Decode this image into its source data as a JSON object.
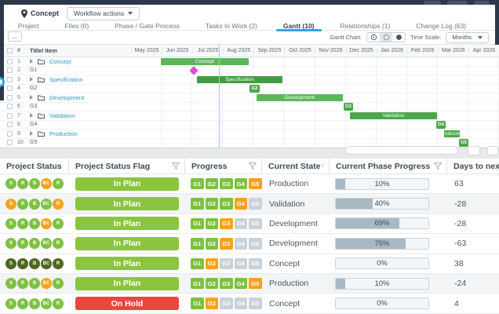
{
  "header": {
    "project_label": "Concept",
    "workflow_button": "Workflow actions"
  },
  "tabs": [
    {
      "label": "Project",
      "active": false
    },
    {
      "label": "Files (0)",
      "active": false
    },
    {
      "label": "Phase / Gate Process",
      "active": false
    },
    {
      "label": "Tasks In Work (2)",
      "active": false
    },
    {
      "label": "Gantt (10)",
      "active": true
    },
    {
      "label": "Relationships (1)",
      "active": false
    },
    {
      "label": "Change Log (63)",
      "active": false
    }
  ],
  "gantt_toolbar": {
    "more_button": "...",
    "chart_label": "Gantt Chart:",
    "view_icons": [
      "clock-circle-icon",
      "half-circle-icon",
      "filled-circle-icon"
    ],
    "selected_view_index": 1,
    "time_scale_label": "Time Scale:",
    "time_scale_value": "Months"
  },
  "gantt": {
    "col_headers": {
      "number": "#",
      "title": "Title/ Item"
    },
    "months": [
      "May 2025",
      "Jun 2025",
      "Jul 2025",
      "Aug 2025",
      "Sep 2025",
      "Oct 2025",
      "Nov 2025",
      "Dec 2025",
      "Jan 2026",
      "Feb 2026",
      "Mar 2026",
      "Apr 2026"
    ],
    "today_month": 2.87,
    "rows": [
      {
        "num": "1",
        "title": "Concept",
        "kind": "phase",
        "bar": {
          "type": "bar",
          "start": 0.97,
          "end": 3.84,
          "label": "Concept",
          "tone": "light"
        }
      },
      {
        "num": "2",
        "title": "G1",
        "kind": "gate",
        "bar": {
          "type": "diamond",
          "at": 2.05
        }
      },
      {
        "num": "3",
        "title": "Specification",
        "kind": "phase",
        "bar": {
          "type": "bar",
          "start": 2.15,
          "end": 4.94,
          "label": "Specification",
          "tone": "dark"
        }
      },
      {
        "num": "4",
        "title": "G2",
        "kind": "gate",
        "bar": {
          "type": "badge",
          "start": 3.86,
          "end": 4.2,
          "label": "G2"
        }
      },
      {
        "num": "5",
        "title": "Development",
        "kind": "phase",
        "bar": {
          "type": "bar",
          "start": 4.09,
          "end": 6.91,
          "label": "Development",
          "tone": "light"
        }
      },
      {
        "num": "6",
        "title": "G3",
        "kind": "gate",
        "bar": {
          "type": "badge",
          "start": 6.93,
          "end": 7.24,
          "label": "G3"
        }
      },
      {
        "num": "7",
        "title": "Validation",
        "kind": "phase",
        "bar": {
          "type": "bar",
          "start": 7.14,
          "end": 9.98,
          "label": "Validation",
          "tone": "mid"
        }
      },
      {
        "num": "8",
        "title": "G4",
        "kind": "gate",
        "bar": {
          "type": "badge",
          "start": 9.95,
          "end": 10.26,
          "label": "G4"
        }
      },
      {
        "num": "9",
        "title": "Production",
        "kind": "phase",
        "bar": {
          "type": "bar",
          "start": 10.21,
          "end": 10.72,
          "label": "Production",
          "tone": "mid"
        }
      },
      {
        "num": "10",
        "title": "G5",
        "kind": "gate",
        "bar": {
          "type": "badge",
          "start": 10.7,
          "end": 11.0,
          "label": "G5"
        }
      }
    ]
  },
  "status_table": {
    "headers": [
      {
        "label": "Project Status",
        "filter": true
      },
      {
        "label": "Project Status Flag",
        "filter": true
      },
      {
        "label": "Progress",
        "filter": true
      },
      {
        "label": "Current State",
        "filter": true
      },
      {
        "label": "Current Phase Progress",
        "filter": true
      },
      {
        "label": "Days to next ...",
        "filter": false
      }
    ],
    "rows": [
      {
        "circles": [
          {
            "label": "S",
            "tone": "green"
          },
          {
            "label": "R",
            "tone": "green"
          },
          {
            "label": "B",
            "tone": "green"
          },
          {
            "label": "BC",
            "tone": "orange"
          },
          {
            "label": "R",
            "tone": "green"
          }
        ],
        "flag": {
          "label": "In Plan",
          "tone": "green"
        },
        "gates": [
          {
            "label": "G1",
            "tone": "green"
          },
          {
            "label": "G2",
            "tone": "green"
          },
          {
            "label": "G3",
            "tone": "green"
          },
          {
            "label": "G4",
            "tone": "green"
          },
          {
            "label": "G5",
            "tone": "orange"
          }
        ],
        "state": "Production",
        "phase_progress": 10,
        "phase_progress_label": "10%",
        "days": "63",
        "shaded": false
      },
      {
        "circles": [
          {
            "label": "S",
            "tone": "orange"
          },
          {
            "label": "R",
            "tone": "green"
          },
          {
            "label": "B",
            "tone": "green"
          },
          {
            "label": "BC",
            "tone": "green"
          },
          {
            "label": "R",
            "tone": "orange"
          }
        ],
        "flag": {
          "label": "In Plan",
          "tone": "green"
        },
        "gates": [
          {
            "label": "G1",
            "tone": "green"
          },
          {
            "label": "G2",
            "tone": "green"
          },
          {
            "label": "G3",
            "tone": "green"
          },
          {
            "label": "G4",
            "tone": "orange"
          },
          {
            "label": "G5",
            "tone": "gray"
          }
        ],
        "state": "Validation",
        "phase_progress": 40,
        "phase_progress_label": "40%",
        "days": "-28",
        "shaded": true
      },
      {
        "circles": [
          {
            "label": "S",
            "tone": "green"
          },
          {
            "label": "R",
            "tone": "green"
          },
          {
            "label": "B",
            "tone": "green"
          },
          {
            "label": "BC",
            "tone": "orange"
          },
          {
            "label": "R",
            "tone": "green"
          }
        ],
        "flag": {
          "label": "In Plan",
          "tone": "green"
        },
        "gates": [
          {
            "label": "G1",
            "tone": "green"
          },
          {
            "label": "G2",
            "tone": "green"
          },
          {
            "label": "G3",
            "tone": "orange"
          },
          {
            "label": "G4",
            "tone": "gray"
          },
          {
            "label": "G5",
            "tone": "gray"
          }
        ],
        "state": "Development",
        "phase_progress": 69,
        "phase_progress_label": "69%",
        "days": "-28",
        "shaded": false
      },
      {
        "circles": [
          {
            "label": "S",
            "tone": "green"
          },
          {
            "label": "R",
            "tone": "green"
          },
          {
            "label": "B",
            "tone": "green"
          },
          {
            "label": "BC",
            "tone": "green"
          },
          {
            "label": "R",
            "tone": "green"
          }
        ],
        "flag": {
          "label": "In Plan",
          "tone": "green"
        },
        "gates": [
          {
            "label": "G1",
            "tone": "green"
          },
          {
            "label": "G2",
            "tone": "green"
          },
          {
            "label": "G3",
            "tone": "orange"
          },
          {
            "label": "G4",
            "tone": "gray"
          },
          {
            "label": "G5",
            "tone": "gray"
          }
        ],
        "state": "Development",
        "phase_progress": 75,
        "phase_progress_label": "75%",
        "days": "-63",
        "shaded": false
      },
      {
        "circles": [
          {
            "label": "S",
            "tone": "dark"
          },
          {
            "label": "R",
            "tone": "dark"
          },
          {
            "label": "B",
            "tone": "dark"
          },
          {
            "label": "BC",
            "tone": "dark"
          },
          {
            "label": "R",
            "tone": "dark"
          }
        ],
        "flag": {
          "label": "In Plan",
          "tone": "green"
        },
        "gates": [
          {
            "label": "G1",
            "tone": "green"
          },
          {
            "label": "G2",
            "tone": "orange"
          },
          {
            "label": "G3",
            "tone": "gray"
          },
          {
            "label": "G4",
            "tone": "gray"
          },
          {
            "label": "G5",
            "tone": "gray"
          }
        ],
        "state": "Concept",
        "phase_progress": 0,
        "phase_progress_label": "0%",
        "days": "38",
        "shaded": false
      },
      {
        "circles": [
          {
            "label": "S",
            "tone": "green"
          },
          {
            "label": "R",
            "tone": "green"
          },
          {
            "label": "B",
            "tone": "green"
          },
          {
            "label": "BC",
            "tone": "orange"
          },
          {
            "label": "R",
            "tone": "green"
          }
        ],
        "flag": {
          "label": "In Plan",
          "tone": "green"
        },
        "gates": [
          {
            "label": "G1",
            "tone": "green"
          },
          {
            "label": "G2",
            "tone": "green"
          },
          {
            "label": "G3",
            "tone": "green"
          },
          {
            "label": "G4",
            "tone": "green"
          },
          {
            "label": "G5",
            "tone": "orange"
          }
        ],
        "state": "Production",
        "phase_progress": 10,
        "phase_progress_label": "10%",
        "days": "-24",
        "shaded": true
      },
      {
        "circles": [
          {
            "label": "S",
            "tone": "green"
          },
          {
            "label": "R",
            "tone": "green"
          },
          {
            "label": "B",
            "tone": "green"
          },
          {
            "label": "BC",
            "tone": "green"
          },
          {
            "label": "R",
            "tone": "green"
          }
        ],
        "flag": {
          "label": "On Hold",
          "tone": "red"
        },
        "gates": [
          {
            "label": "G1",
            "tone": "green"
          },
          {
            "label": "G2",
            "tone": "orange"
          },
          {
            "label": "G3",
            "tone": "gray"
          },
          {
            "label": "G4",
            "tone": "gray"
          },
          {
            "label": "G5",
            "tone": "gray"
          }
        ],
        "state": "Concept",
        "phase_progress": 0,
        "phase_progress_label": "0%",
        "days": "4",
        "shaded": false
      }
    ]
  },
  "colors": {
    "accent_blue": "#2da9e1",
    "link_blue": "#2d96c8",
    "today_line": "#8fd7ef",
    "bar_light": "#5cb75a",
    "bar_mid": "#4aa84a",
    "bar_dark": "#3f9e3f",
    "milestone_magenta": "#d950c7",
    "tone_green": "#7dc141",
    "tone_orange": "#f5a31e",
    "tone_gray": "#c9d2d9",
    "tone_dark": "#4e671f",
    "flag_green": "#8bc53f",
    "flag_red": "#e8473f",
    "progress_fill": "#a9b9c3"
  }
}
